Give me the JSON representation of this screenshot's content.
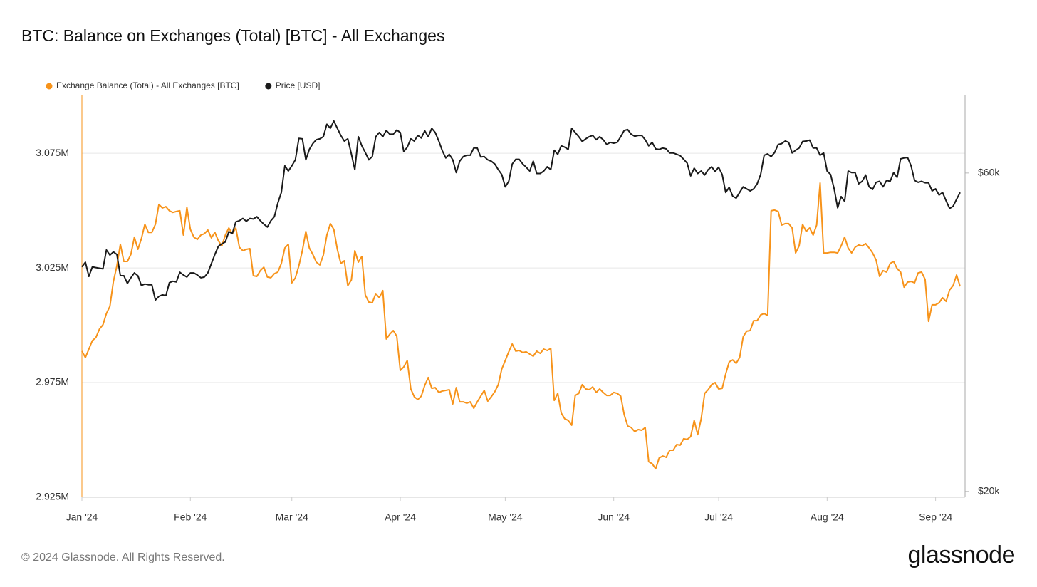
{
  "chart_data": {
    "type": "line",
    "title": "BTC: Balance on Exchanges (Total) [BTC] - All Exchanges",
    "categories": [
      "Jan '24",
      null,
      null,
      null,
      null,
      null,
      null,
      null,
      null,
      null,
      null,
      null,
      null,
      null,
      null,
      null,
      null,
      null,
      null,
      null,
      null,
      null,
      null,
      null,
      null,
      null,
      null,
      null,
      null,
      null,
      null,
      "Feb '24",
      null,
      null,
      null,
      null,
      null,
      null,
      null,
      null,
      null,
      null,
      null,
      null,
      null,
      null,
      null,
      null,
      null,
      null,
      null,
      null,
      null,
      null,
      null,
      null,
      null,
      null,
      null,
      null,
      "Mar '24",
      null,
      null,
      null,
      null,
      null,
      null,
      null,
      null,
      null,
      null,
      null,
      null,
      null,
      null,
      null,
      null,
      null,
      null,
      null,
      null,
      null,
      null,
      null,
      null,
      null,
      null,
      null,
      null,
      null,
      null,
      "Apr '24",
      null,
      null,
      null,
      null,
      null,
      null,
      null,
      null,
      null,
      null,
      null,
      null,
      null,
      null,
      null,
      null,
      null,
      null,
      null,
      null,
      null,
      null,
      null,
      null,
      null,
      null,
      null,
      null,
      null,
      "May '24",
      null,
      null,
      null,
      null,
      null,
      null,
      null,
      null,
      null,
      null,
      null,
      null,
      null,
      null,
      null,
      null,
      null,
      null,
      null,
      null,
      null,
      null,
      null,
      null,
      null,
      null,
      null,
      null,
      null,
      null,
      "Jun '24",
      null,
      null,
      null,
      null,
      null,
      null,
      null,
      null,
      null,
      null,
      null,
      null,
      null,
      null,
      null,
      null,
      null,
      null,
      null,
      null,
      null,
      null,
      null,
      null,
      null,
      null,
      null,
      null,
      null,
      "Jul '24",
      null,
      null,
      null,
      null,
      null,
      null,
      null,
      null,
      null,
      null,
      null,
      null,
      null,
      null,
      null,
      null,
      null,
      null,
      null,
      null,
      null,
      null,
      null,
      null,
      null,
      null,
      null,
      null,
      null,
      null,
      "Aug '24",
      null,
      null,
      null,
      null,
      null,
      null,
      null,
      null,
      null,
      null,
      null,
      null,
      null,
      null,
      null,
      null,
      null,
      null,
      null,
      null,
      null,
      null,
      null,
      null,
      null,
      null,
      null,
      null,
      null,
      null,
      "Sep '24",
      null,
      null,
      null,
      null,
      null,
      null,
      null
    ],
    "series": [
      {
        "name": "Exchange Balance (Total) - All Exchanges [BTC]",
        "color": "#f7931a",
        "axis": "y",
        "values": [
          2988700,
          2985900,
          2989600,
          2993300,
          2994600,
          2998300,
          3000200,
          3005100,
          3008200,
          3019100,
          3025900,
          3035300,
          3027800,
          3027800,
          3030900,
          3038400,
          3033100,
          3037700,
          3044000,
          3040500,
          3040500,
          3044000,
          3052700,
          3051100,
          3051700,
          3049900,
          3049200,
          3049600,
          3049900,
          3039300,
          3051400,
          3041800,
          3038400,
          3037400,
          3039300,
          3039900,
          3041500,
          3038100,
          3040500,
          3036800,
          3034600,
          3039300,
          3042400,
          3039900,
          3042400,
          3034000,
          3032500,
          3033100,
          3033400,
          3021600,
          3021300,
          3023800,
          3025300,
          3021000,
          3020700,
          3022500,
          3023200,
          3026900,
          3033700,
          3035300,
          3018500,
          3020700,
          3025900,
          3032500,
          3040900,
          3033700,
          3030900,
          3027500,
          3026300,
          3030600,
          3039300,
          3044300,
          3041800,
          3033100,
          3026900,
          3028100,
          3017300,
          3019700,
          3032500,
          3027500,
          3030000,
          3013200,
          3010100,
          3009800,
          3013800,
          3012000,
          3015100,
          2994000,
          2996100,
          2997700,
          2995200,
          2980300,
          2981800,
          2984600,
          2972200,
          2968800,
          2967600,
          2969100,
          2973800,
          2977200,
          2972500,
          2972800,
          2970700,
          2971300,
          2971600,
          2971900,
          2965700,
          2972800,
          2966600,
          2966600,
          2966000,
          2966600,
          2963800,
          2966600,
          2969100,
          2971600,
          2966900,
          2968800,
          2971000,
          2974100,
          2980900,
          2984600,
          2988400,
          2991800,
          2988700,
          2989000,
          2988100,
          2988400,
          2987400,
          2986500,
          2988700,
          2987700,
          2989600,
          2989000,
          2989900,
          2967200,
          2970300,
          2961700,
          2959200,
          2958500,
          2956400,
          2969400,
          2970300,
          2974100,
          2972200,
          2971900,
          2973100,
          2970700,
          2972200,
          2970700,
          2969400,
          2969400,
          2970700,
          2970300,
          2969100,
          2961000,
          2956100,
          2955400,
          2953600,
          2954500,
          2954200,
          2955400,
          2940500,
          2939600,
          2937400,
          2942100,
          2943000,
          2942400,
          2945500,
          2945500,
          2948000,
          2947700,
          2950500,
          2950200,
          2951400,
          2958500,
          2952300,
          2959200,
          2970300,
          2971900,
          2974100,
          2975000,
          2972200,
          2972500,
          2978700,
          2984000,
          2984900,
          2983400,
          2985900,
          2994900,
          2997400,
          2997700,
          3002000,
          3002000,
          3004500,
          3005100,
          3004200,
          3049900,
          3050200,
          3049600,
          3043700,
          3044300,
          3044300,
          3042400,
          3031500,
          3034600,
          3044000,
          3040900,
          3042400,
          3039300,
          3043700,
          3062000,
          3031500,
          3031500,
          3031800,
          3031800,
          3031500,
          3034600,
          3038400,
          3033700,
          3031500,
          3034000,
          3035000,
          3034600,
          3035600,
          3033700,
          3031500,
          3028400,
          3021300,
          3023800,
          3023200,
          3026900,
          3027800,
          3024700,
          3023200,
          3016600,
          3018800,
          3019100,
          3018500,
          3022800,
          3023200,
          3020000,
          3001700,
          3008900,
          3008900,
          3009800,
          3012000,
          3010400,
          3015400,
          3017300,
          3021900,
          3016900
        ]
      },
      {
        "name": "Price [USD]",
        "color": "#1a1a1a",
        "axis": "y2",
        "values": [
          43400,
          44100,
          42000,
          43400,
          43300,
          43200,
          43100,
          46000,
          45200,
          45700,
          45300,
          42100,
          42100,
          41000,
          41800,
          42500,
          42100,
          40700,
          40900,
          40800,
          40800,
          38700,
          39200,
          39400,
          39300,
          41100,
          41300,
          41200,
          42600,
          42200,
          41900,
          42500,
          42500,
          42200,
          41800,
          41900,
          42500,
          43900,
          45300,
          46600,
          47000,
          47300,
          49000,
          48700,
          50700,
          50900,
          51300,
          50800,
          51300,
          51200,
          51600,
          50900,
          50300,
          49800,
          50900,
          51600,
          54100,
          56100,
          61500,
          60400,
          61500,
          62800,
          67600,
          67500,
          62800,
          65100,
          66400,
          67300,
          67500,
          68000,
          71000,
          70000,
          71800,
          70000,
          68300,
          67000,
          67500,
          64100,
          60700,
          68000,
          65900,
          64400,
          62800,
          63500,
          68000,
          69000,
          68000,
          69500,
          68600,
          68600,
          69600,
          69000,
          64600,
          65600,
          67500,
          67000,
          68300,
          67700,
          69400,
          68000,
          70000,
          69000,
          67000,
          64800,
          63200,
          64000,
          62800,
          60100,
          62500,
          63500,
          63800,
          63800,
          65400,
          65400,
          63400,
          63500,
          62800,
          62500,
          61900,
          60700,
          59700,
          57200,
          58300,
          61900,
          62900,
          62900,
          61900,
          61200,
          60400,
          62500,
          59900,
          59900,
          60400,
          61300,
          60700,
          64900,
          64000,
          65900,
          65600,
          65100,
          70000,
          69000,
          68000,
          66900,
          67500,
          68000,
          68300,
          67300,
          68000,
          67300,
          66200,
          66700,
          66500,
          66700,
          68000,
          69500,
          69700,
          68600,
          68100,
          68300,
          68300,
          67300,
          65900,
          66700,
          65200,
          65100,
          65400,
          65200,
          64300,
          64300,
          64000,
          63700,
          62900,
          62100,
          59400,
          61000,
          59900,
          60400,
          59600,
          60700,
          61300,
          60300,
          61200,
          59700,
          56100,
          57100,
          55400,
          55000,
          56100,
          57200,
          56800,
          56400,
          56800,
          57800,
          59700,
          63800,
          64100,
          63500,
          64400,
          66200,
          66400,
          67000,
          66700,
          64300,
          64900,
          65400,
          66900,
          67000,
          67200,
          65400,
          65400,
          63800,
          64300,
          60400,
          59700,
          56800,
          53200,
          55300,
          54400,
          60400,
          60100,
          60100,
          57800,
          58300,
          59600,
          57200,
          56700,
          58100,
          58300,
          57200,
          58500,
          58300,
          60100,
          59100,
          63000,
          63200,
          63300,
          61500,
          58500,
          58100,
          58300,
          58000,
          58000,
          56400,
          56800,
          55600,
          56100,
          54500,
          53100,
          53500,
          54800,
          56100
        ]
      }
    ],
    "ylim": [
      2925000,
      3100500
    ],
    "yticks": [
      {
        "value": 2925000,
        "label": "2.925M"
      },
      {
        "value": 2975000,
        "label": "2.975M"
      },
      {
        "value": 3025000,
        "label": "3.025M"
      },
      {
        "value": 3075000,
        "label": "3.075M"
      }
    ],
    "y2lim": [
      19600,
      78600
    ],
    "y2ticks": [
      {
        "value": 20000,
        "label": "$20k"
      },
      {
        "value": 60000,
        "label": "$60k"
      }
    ],
    "y2log": true,
    "grid": true,
    "legend": "top-left"
  },
  "footer": {
    "copyright": "© 2024 Glassnode. All Rights Reserved.",
    "logo": "glassnode"
  }
}
